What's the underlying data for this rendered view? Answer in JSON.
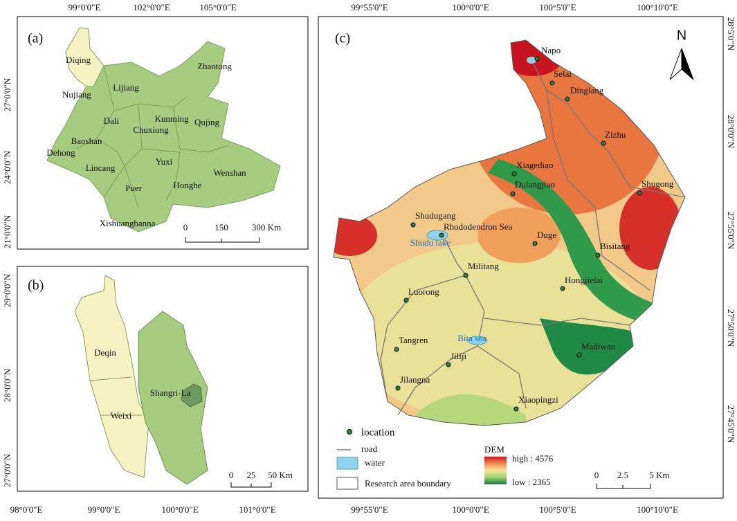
{
  "panel_a": {
    "label": "(a)",
    "lon_ticks": [
      "99°0'0\"E",
      "102°0'0\"E",
      "105°0'0\"E"
    ],
    "lat_ticks": [
      "27°0'0\"N",
      "24°0'0\"N",
      "21°0'0\"N"
    ],
    "places": [
      "Diqing",
      "Zhaotong",
      "Nujiang",
      "Lijiang",
      "Dali",
      "Kunming",
      "Chuxiong",
      "Qujing",
      "Baoshan",
      "Dehong",
      "Yuxi",
      "Wenshan",
      "Lincang",
      "Honghe",
      "Puer",
      "Xishuangbanna"
    ],
    "scale": [
      "0",
      "150",
      "300 Km"
    ]
  },
  "panel_b": {
    "label": "(b)",
    "lon_ticks": [
      "98°0'0\"E",
      "99°0'0\"E",
      "100°0'0\"E",
      "101°0'0\"E"
    ],
    "lat_ticks": [
      "29°0'0\"N",
      "28°0'0\"N",
      "27°0'0\"N"
    ],
    "places": [
      "Deqin",
      "Weixi",
      "Shangri-La"
    ],
    "scale": [
      "0",
      "25",
      "50 Km"
    ]
  },
  "panel_c": {
    "label": "(c)",
    "lon_ticks": [
      "99°55'0\"E",
      "100°0'0\"E",
      "100°5'0\"E",
      "100°10'0\"E"
    ],
    "lat_ticks": [
      "28°5'0\"N",
      "28°0'0\"N",
      "27°55'0\"N",
      "27°50'0\"N",
      "27°45'0\"N"
    ],
    "north": "N",
    "locations": [
      "Napo",
      "Selai",
      "Dinglang",
      "Zizhu",
      "Shugong",
      "Xiagediao",
      "Dulangjiao",
      "Shudugang",
      "Rhododendron Sea",
      "Duge",
      "Bisitang",
      "Militang",
      "Hongjielai",
      "Luorong",
      "Tangren",
      "Madiwan",
      "Jiliji",
      "Jilangna",
      "Xiaopingzi"
    ],
    "lakes": [
      "Shudu lake",
      "Bita sea"
    ],
    "legend": {
      "location": "location",
      "road": "road",
      "water": "water",
      "boundary": "Research area boundary",
      "dem_title": "DEM",
      "dem_high": "high : 4576",
      "dem_low": "low : 2365"
    },
    "scale": [
      "0",
      "2.5",
      "5 Km"
    ]
  }
}
